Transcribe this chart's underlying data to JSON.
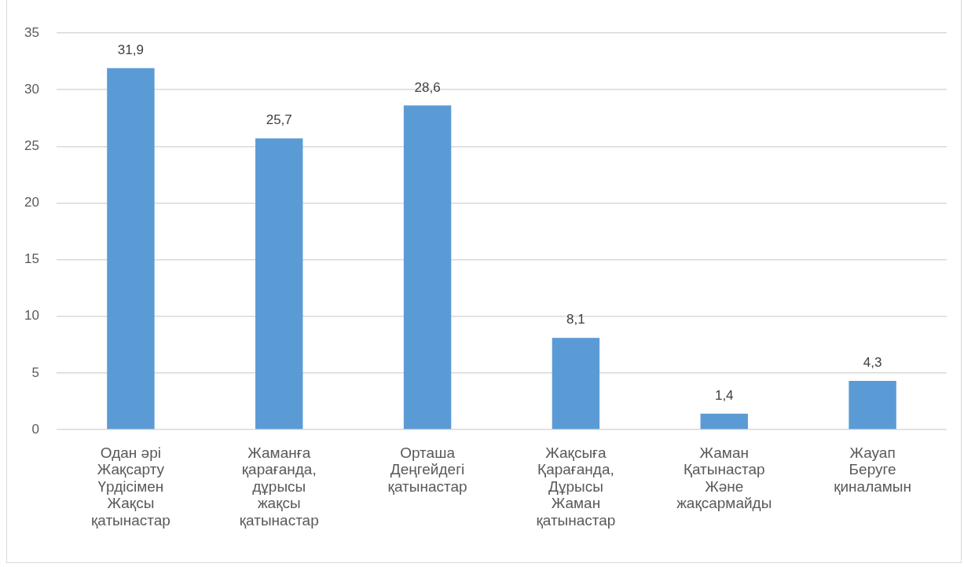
{
  "chart_data": {
    "type": "bar",
    "categories": [
      "Одан әрі\nЖақсарту\nҮрдісімен\nЖақсы\nқатынастар",
      "Жаманға\nқарағанда,\nдұрысы\nжақсы\nқатынастар",
      "Орташа\nДеңгейдегі\nқатынастар",
      "Жақсыға\nҚарағанда,\nДұрысы\nЖаман\nқатынастар",
      "Жаман\nҚатынастар\nЖәне\nжақсармайды",
      "Жауап\nБеруге\nқиналамын"
    ],
    "values": [
      31.9,
      25.7,
      28.6,
      8.1,
      1.4,
      4.3
    ],
    "value_labels": [
      "31,9",
      "25,7",
      "28,6",
      "8,1",
      "1,4",
      "4,3"
    ],
    "color": "#5b9bd5",
    "ylim": [
      0,
      35
    ],
    "yticks": [
      0,
      5,
      10,
      15,
      20,
      25,
      30,
      35
    ],
    "grid": "y"
  }
}
